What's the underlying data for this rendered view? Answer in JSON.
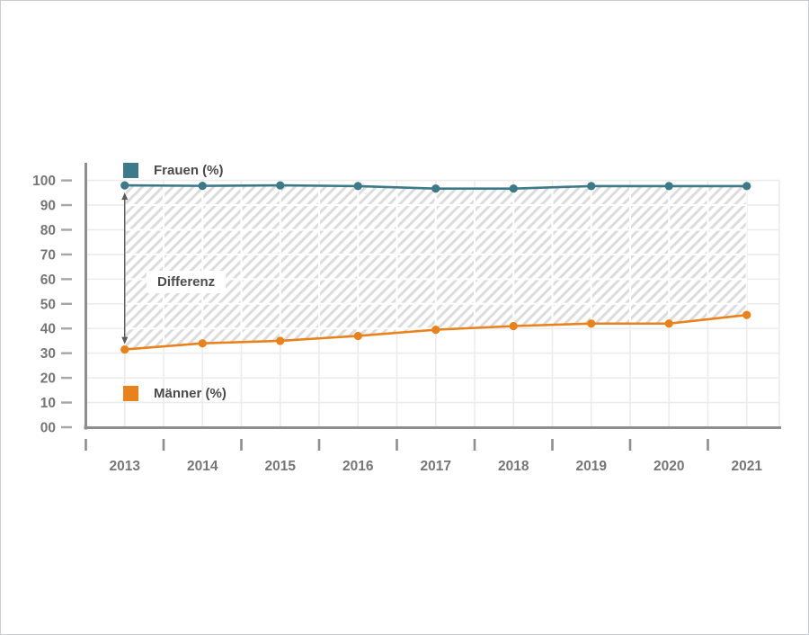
{
  "chart_data": {
    "type": "line",
    "title": "",
    "x": [
      "2013",
      "2014",
      "2015",
      "2016",
      "2017",
      "2018",
      "2019",
      "2020",
      "2021"
    ],
    "series": [
      {
        "name": "Frauen (%)",
        "color": "#3d7a89",
        "values": [
          98,
          97.8,
          98,
          97.7,
          96.7,
          96.7,
          97.7,
          97.7,
          97.7
        ]
      },
      {
        "name": "Männer (%)",
        "color": "#e8821d",
        "values": [
          31.5,
          34,
          35,
          37,
          39.5,
          41,
          42,
          42,
          45.5
        ]
      }
    ],
    "ylim": [
      0,
      100
    ],
    "ytick_step": 10,
    "ytick_labels": [
      "00",
      "10",
      "20",
      "30",
      "40",
      "50",
      "60",
      "70",
      "80",
      "90",
      "100"
    ],
    "grid": true,
    "legend_position": "inside-plot",
    "annotation": {
      "label": "Differenz",
      "type": "difference-arrow-between-series",
      "at_x": "2013"
    },
    "area_between_series": "hatched"
  },
  "colors": {
    "frauen_line": "#3d7a89",
    "maenner_line": "#e8821d",
    "axis": "#8e8e8e",
    "gridline": "#ececec",
    "hatch_stripe": "#dcdcdc",
    "tick_label": "#767676",
    "legend_text": "#4a4a4a",
    "arrow": "#5a5a5a",
    "canvas_border": "#c9cdd3"
  }
}
